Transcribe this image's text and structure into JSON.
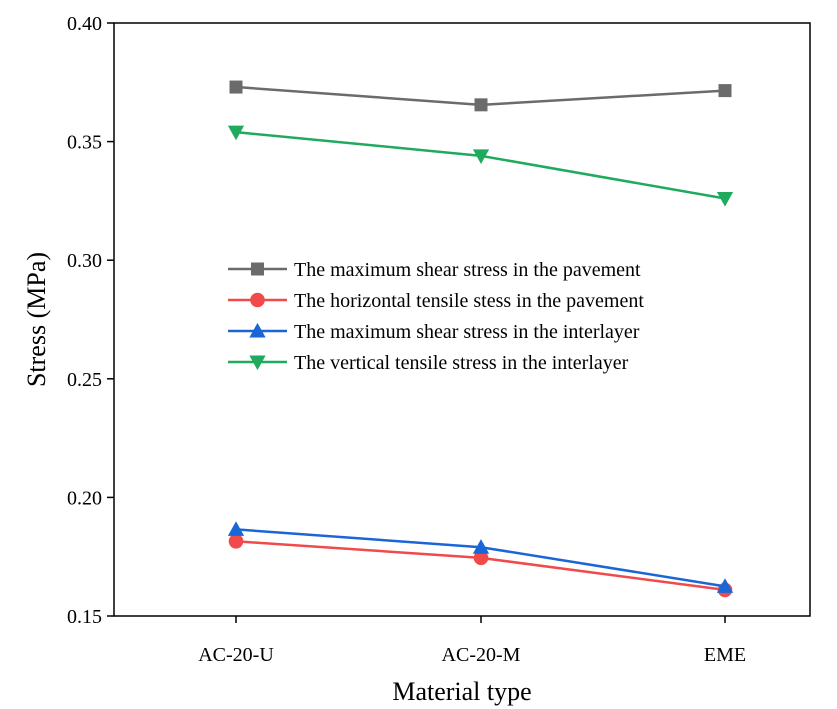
{
  "chart_data": {
    "type": "line",
    "title": "",
    "xlabel": "Material type",
    "ylabel": "Stress (MPa)",
    "categories": [
      "AC-20-U",
      "AC-20-M",
      "EME"
    ],
    "ylim": [
      0.15,
      0.4
    ],
    "yticks": [
      "0.15",
      "0.20",
      "0.25",
      "0.30",
      "0.35",
      "0.40"
    ],
    "grid": false,
    "legend_position": "center",
    "series": [
      {
        "name": "The maximum shear stress in the pavement",
        "values": [
          0.373,
          0.3655,
          0.3715
        ],
        "color": "#6b6b6b",
        "marker": "square"
      },
      {
        "name": "The horizontal tensile stess in the pavement",
        "values": [
          0.1815,
          0.1745,
          0.161
        ],
        "color": "#f04a4a",
        "marker": "circle"
      },
      {
        "name": "The maximum shear stress in the interlayer",
        "values": [
          0.1865,
          0.179,
          0.1625
        ],
        "color": "#1a66d6",
        "marker": "triangle-up"
      },
      {
        "name": "The vertical tensile stress in the interlayer",
        "values": [
          0.354,
          0.344,
          0.326
        ],
        "color": "#1faa5e",
        "marker": "triangle-down"
      }
    ]
  }
}
